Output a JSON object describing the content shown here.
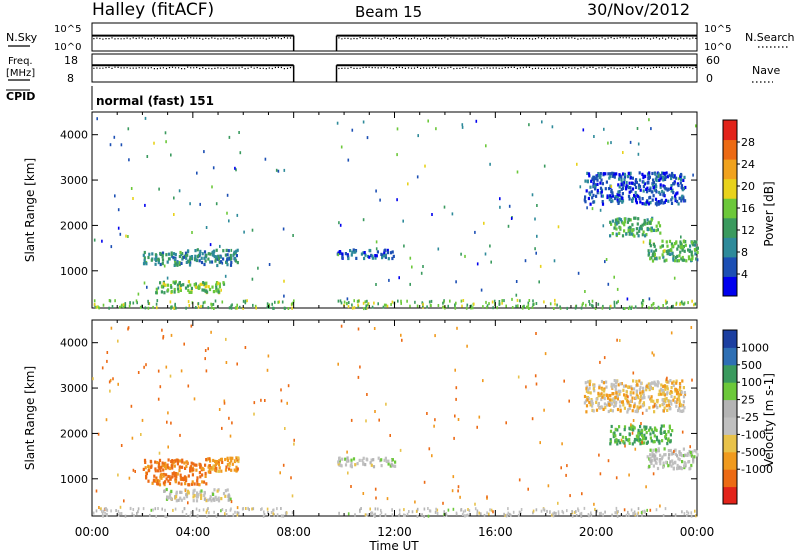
{
  "header": {
    "title": "Halley (fitACF)",
    "beam": "Beam 15",
    "date": "30/Nov/2012"
  },
  "strips": {
    "nsky": {
      "label": "N.Sky",
      "tick_top": "10^5",
      "tick_bottom": "10^0"
    },
    "nsearch": {
      "label": "N.Search",
      "tick_top": "10^5",
      "tick_bottom": "10^0"
    },
    "freq": {
      "label_line1": "Freq.",
      "label_line2": "[MHz]",
      "tick_top": "18",
      "tick_bottom": "8",
      "ylim": [
        8,
        18
      ]
    },
    "nave": {
      "label": "Nave",
      "tick_top": "60",
      "tick_bottom": "0",
      "ylim": [
        0,
        60
      ]
    },
    "cpid": {
      "label": "CPID",
      "value": "normal (fast) 151"
    }
  },
  "time_axis": {
    "label": "Time UT",
    "ticks": [
      "00:00",
      "04:00",
      "08:00",
      "12:00",
      "16:00",
      "20:00",
      "00:00"
    ],
    "xlim_hours": [
      0,
      24
    ],
    "data_gap_hours": [
      8.0,
      9.7
    ]
  },
  "range_axis": {
    "label": "Slant Range [km]",
    "ticks": [
      "1000",
      "2000",
      "3000",
      "4000"
    ],
    "ylim_km": [
      180,
      4500
    ]
  },
  "colors": {
    "power_scale": [
      "#0000ee",
      "#1c4fb4",
      "#2e8a9a",
      "#3a9a5e",
      "#6cc83a",
      "#e8d21c",
      "#f0a21e",
      "#ec6a14",
      "#e2231a"
    ],
    "velocity_scale": [
      "#e2231a",
      "#ec6a14",
      "#f09a1e",
      "#e8c24a",
      "#c0c0c0",
      "#b4b4b4",
      "#6cc83a",
      "#3a9a5e",
      "#2e6fb4",
      "#1c3fa0"
    ]
  },
  "chart_data": [
    {
      "type": "line",
      "panel": "N.Sky / N.Search",
      "x_hours": [
        0.0,
        8.0,
        9.7,
        24.0
      ],
      "series": [
        {
          "values": [
            "10^3",
            "10^3",
            "10^3",
            "10^3"
          ]
        }
      ]
    },
    {
      "type": "line",
      "panel": "Freq. / Nave",
      "x_hours": [
        0.0,
        8.0,
        9.7,
        24.0
      ],
      "series": [
        {
          "values": [
            11.5,
            11.5,
            11.5,
            11.5
          ]
        }
      ]
    },
    {
      "type": "heatmap",
      "panel": "power",
      "colorbar_label": "Power [dB]",
      "colorbar_ticks": [
        "4",
        "8",
        "12",
        "16",
        "20",
        "24",
        "28"
      ],
      "colorbar_range": [
        0,
        30
      ],
      "patches": [
        {
          "t": [
            2.0,
            3.6
          ],
          "r": [
            1150,
            1450
          ],
          "level": 10
        },
        {
          "t": [
            2.5,
            5.2
          ],
          "r": [
            550,
            800
          ],
          "level": 14
        },
        {
          "t": [
            3.6,
            5.8
          ],
          "r": [
            1150,
            1500
          ],
          "level": 9
        },
        {
          "t": [
            9.7,
            12.0
          ],
          "r": [
            1300,
            1500
          ],
          "level": 6
        },
        {
          "t": [
            20.5,
            22.5
          ],
          "r": [
            1800,
            2200
          ],
          "level": 12
        },
        {
          "t": [
            22.0,
            24.0
          ],
          "r": [
            1250,
            1700
          ],
          "level": 13
        },
        {
          "t": [
            19.5,
            23.5
          ],
          "r": [
            2500,
            3200
          ],
          "level": 5
        }
      ]
    },
    {
      "type": "heatmap",
      "panel": "velocity",
      "colorbar_label": "Velocity [m s-1]",
      "colorbar_ticks": [
        "1000",
        "500",
        "100",
        "25",
        "-25",
        "-100",
        "-500",
        "-1000"
      ],
      "colorbar_range": [
        -1000,
        1000
      ],
      "patches": [
        {
          "t": [
            2.0,
            4.5
          ],
          "r": [
            900,
            1450
          ],
          "level": -120
        },
        {
          "t": [
            2.8,
            5.5
          ],
          "r": [
            550,
            800
          ],
          "level": 10
        },
        {
          "t": [
            4.3,
            5.8
          ],
          "r": [
            1150,
            1500
          ],
          "level": -80
        },
        {
          "t": [
            9.7,
            12.0
          ],
          "r": [
            1300,
            1500
          ],
          "level": 15
        },
        {
          "t": [
            20.5,
            23.0
          ],
          "r": [
            1800,
            2200
          ],
          "level": 100
        },
        {
          "t": [
            22.0,
            24.0
          ],
          "r": [
            1250,
            1700
          ],
          "level": 20
        },
        {
          "t": [
            19.5,
            23.5
          ],
          "r": [
            2500,
            3200
          ],
          "level": -30
        }
      ]
    }
  ]
}
